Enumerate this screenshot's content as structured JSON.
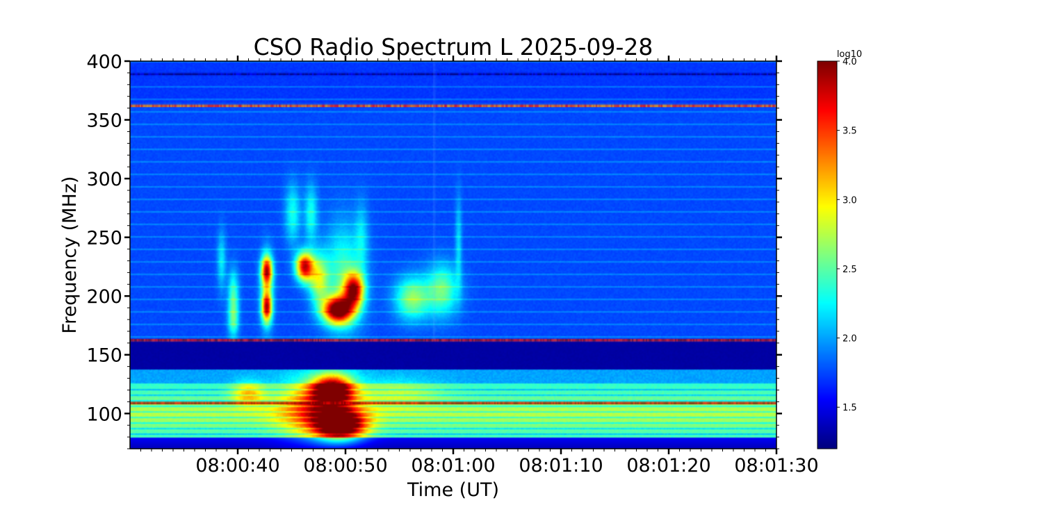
{
  "chart_data": {
    "type": "heatmap",
    "title": "CSO Radio Spectrum L 2025-09-28",
    "xlabel": "Time (UT)",
    "ylabel": "Frequency (MHz)",
    "x_tick_labels": [
      "08:00:40",
      "08:00:50",
      "08:01:00",
      "08:01:10",
      "08:01:20",
      "08:01:30"
    ],
    "x_tick_seconds": [
      40,
      50,
      60,
      70,
      80,
      90
    ],
    "xlim_seconds": [
      30,
      90
    ],
    "x_start_label": "08:00:30",
    "y_tick_values": [
      100,
      150,
      200,
      250,
      300,
      350,
      400
    ],
    "ylim": [
      70,
      400
    ],
    "colorbar": {
      "label": "log10",
      "range": [
        1.2,
        4.0
      ],
      "tick_values": [
        1.5,
        2.0,
        2.5,
        3.0,
        3.5,
        4.0
      ],
      "tick_labels": [
        "1.5",
        "2.0",
        "2.5",
        "3.0",
        "3.5",
        "4.0"
      ],
      "colormap": "jet"
    },
    "background_level": 1.75,
    "blobs": [
      {
        "t": 38.5,
        "f": 230,
        "dt": 0.4,
        "df": 25,
        "v": 0.45
      },
      {
        "t": 39.6,
        "f": 200,
        "dt": 0.5,
        "df": 22,
        "v": 0.7
      },
      {
        "t": 39.6,
        "f": 178,
        "dt": 0.5,
        "df": 14,
        "v": 0.55
      },
      {
        "t": 42.7,
        "f": 222,
        "dt": 0.5,
        "df": 12,
        "v": 1.6
      },
      {
        "t": 42.7,
        "f": 190,
        "dt": 0.45,
        "df": 12,
        "v": 1.55
      },
      {
        "t": 42.7,
        "f": 205,
        "dt": 0.6,
        "df": 30,
        "v": 0.8
      },
      {
        "t": 45.1,
        "f": 270,
        "dt": 0.7,
        "df": 25,
        "v": 0.55
      },
      {
        "t": 46.8,
        "f": 270,
        "dt": 0.6,
        "df": 25,
        "v": 0.55
      },
      {
        "t": 46.2,
        "f": 225,
        "dt": 0.8,
        "df": 12,
        "v": 2.0
      },
      {
        "t": 47.5,
        "f": 215,
        "dt": 0.9,
        "df": 20,
        "v": 1.0
      },
      {
        "t": 49.3,
        "f": 188,
        "dt": 1.4,
        "df": 11,
        "v": 2.3
      },
      {
        "t": 50.8,
        "f": 205,
        "dt": 0.9,
        "df": 14,
        "v": 1.85
      },
      {
        "t": 49.8,
        "f": 215,
        "dt": 1.8,
        "df": 45,
        "v": 0.7
      },
      {
        "t": 51.5,
        "f": 250,
        "dt": 0.6,
        "df": 30,
        "v": 0.35
      },
      {
        "t": 56.2,
        "f": 198,
        "dt": 1.6,
        "df": 18,
        "v": 0.9
      },
      {
        "t": 59.0,
        "f": 205,
        "dt": 1.5,
        "df": 22,
        "v": 0.8
      },
      {
        "t": 60.5,
        "f": 245,
        "dt": 0.3,
        "df": 40,
        "v": 0.4
      },
      {
        "t": 48.8,
        "f": 120,
        "dt": 1.8,
        "df": 12,
        "v": 2.0
      },
      {
        "t": 49.5,
        "f": 90,
        "dt": 2.2,
        "df": 12,
        "v": 2.1
      },
      {
        "t": 47.5,
        "f": 105,
        "dt": 3.5,
        "df": 25,
        "v": 1.0
      },
      {
        "t": 41.0,
        "f": 117,
        "dt": 1.5,
        "df": 10,
        "v": 0.7
      },
      {
        "t": 55.0,
        "f": 118,
        "dt": 4.0,
        "df": 12,
        "v": 0.35
      }
    ],
    "low_band": {
      "f_min": 80,
      "f_max": 137,
      "center": 100,
      "level": 2.75
    },
    "dark_band": {
      "f_min": 137,
      "f_max": 161,
      "level": 1.3
    },
    "rfi_lines": [
      {
        "f": 362,
        "v": 3.4
      },
      {
        "f": 162.5,
        "v": 3.8
      },
      {
        "f": 109,
        "v": 3.9
      },
      {
        "f": 389,
        "v": 1.3
      }
    ],
    "spike_time_seconds": 58.2
  }
}
